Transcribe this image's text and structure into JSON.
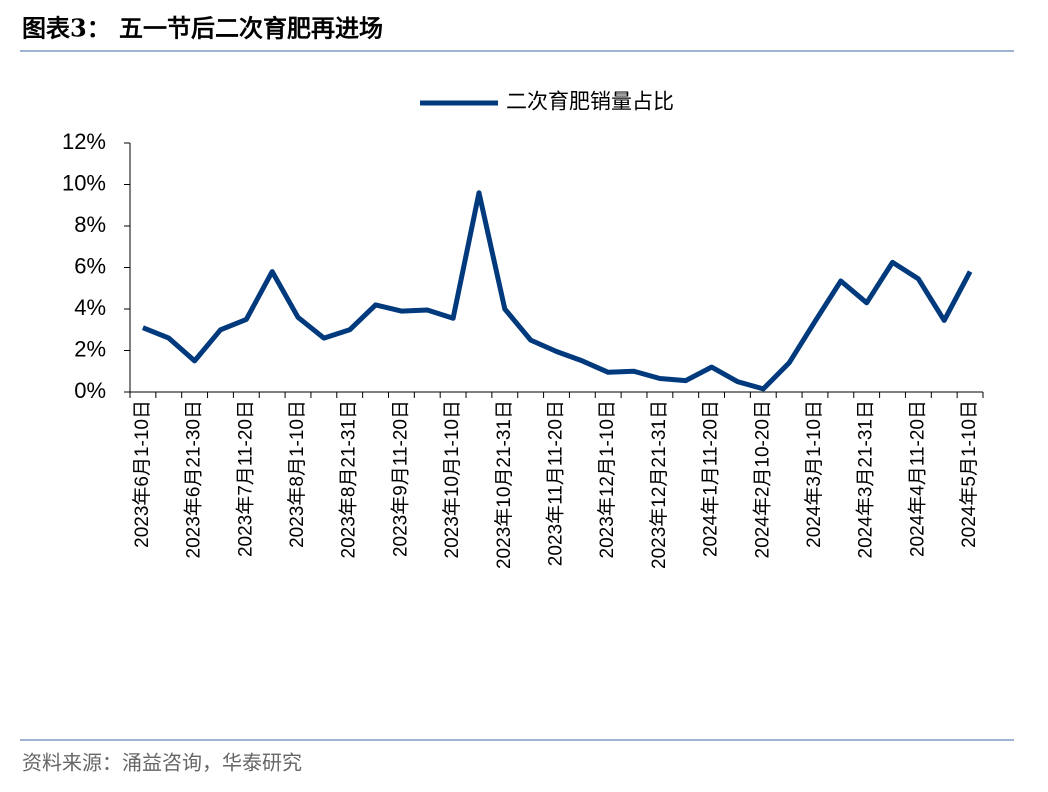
{
  "title": "图表3：  五一节后二次育肥再进场",
  "source": "资料来源：涌益咨询，华泰研究",
  "chart_data": {
    "type": "line",
    "categories": [
      "2023年6月1-10日",
      null,
      "2023年6月21-30日",
      null,
      "2023年7月11-20日",
      null,
      "2023年8月1-10日",
      null,
      "2023年8月21-31日",
      null,
      "2023年9月11-20日",
      null,
      "2023年10月1-10日",
      null,
      "2023年10月21-31日",
      null,
      "2023年11月11-20日",
      null,
      "2023年12月1-10日",
      null,
      "2023年12月21-31日",
      null,
      "2024年1月11-20日",
      null,
      "2024年2月10-20日",
      null,
      "2024年3月1-10日",
      null,
      "2024年3月21-31日",
      null,
      "2024年4月11-20日",
      null,
      "2024年5月1-10日"
    ],
    "series": [
      {
        "name": "二次育肥销量占比",
        "color": "#003a7d",
        "values": [
          3.1,
          2.6,
          1.5,
          3.0,
          3.5,
          5.8,
          3.6,
          2.6,
          3.0,
          4.2,
          3.9,
          3.95,
          3.55,
          9.6,
          4.0,
          2.5,
          1.95,
          1.5,
          0.95,
          1.0,
          0.65,
          0.55,
          1.2,
          0.5,
          0.15,
          1.4,
          3.4,
          5.35,
          4.3,
          6.25,
          5.45,
          3.45,
          5.8
        ]
      }
    ],
    "ylim": [
      0,
      12
    ],
    "yticks": [
      {
        "value": 0,
        "label": "0%"
      },
      {
        "value": 2,
        "label": "2%"
      },
      {
        "value": 4,
        "label": "4%"
      },
      {
        "value": 6,
        "label": "6%"
      },
      {
        "value": 8,
        "label": "8%"
      },
      {
        "value": 10,
        "label": "10%"
      },
      {
        "value": 12,
        "label": "12%"
      }
    ],
    "legend": "top"
  }
}
